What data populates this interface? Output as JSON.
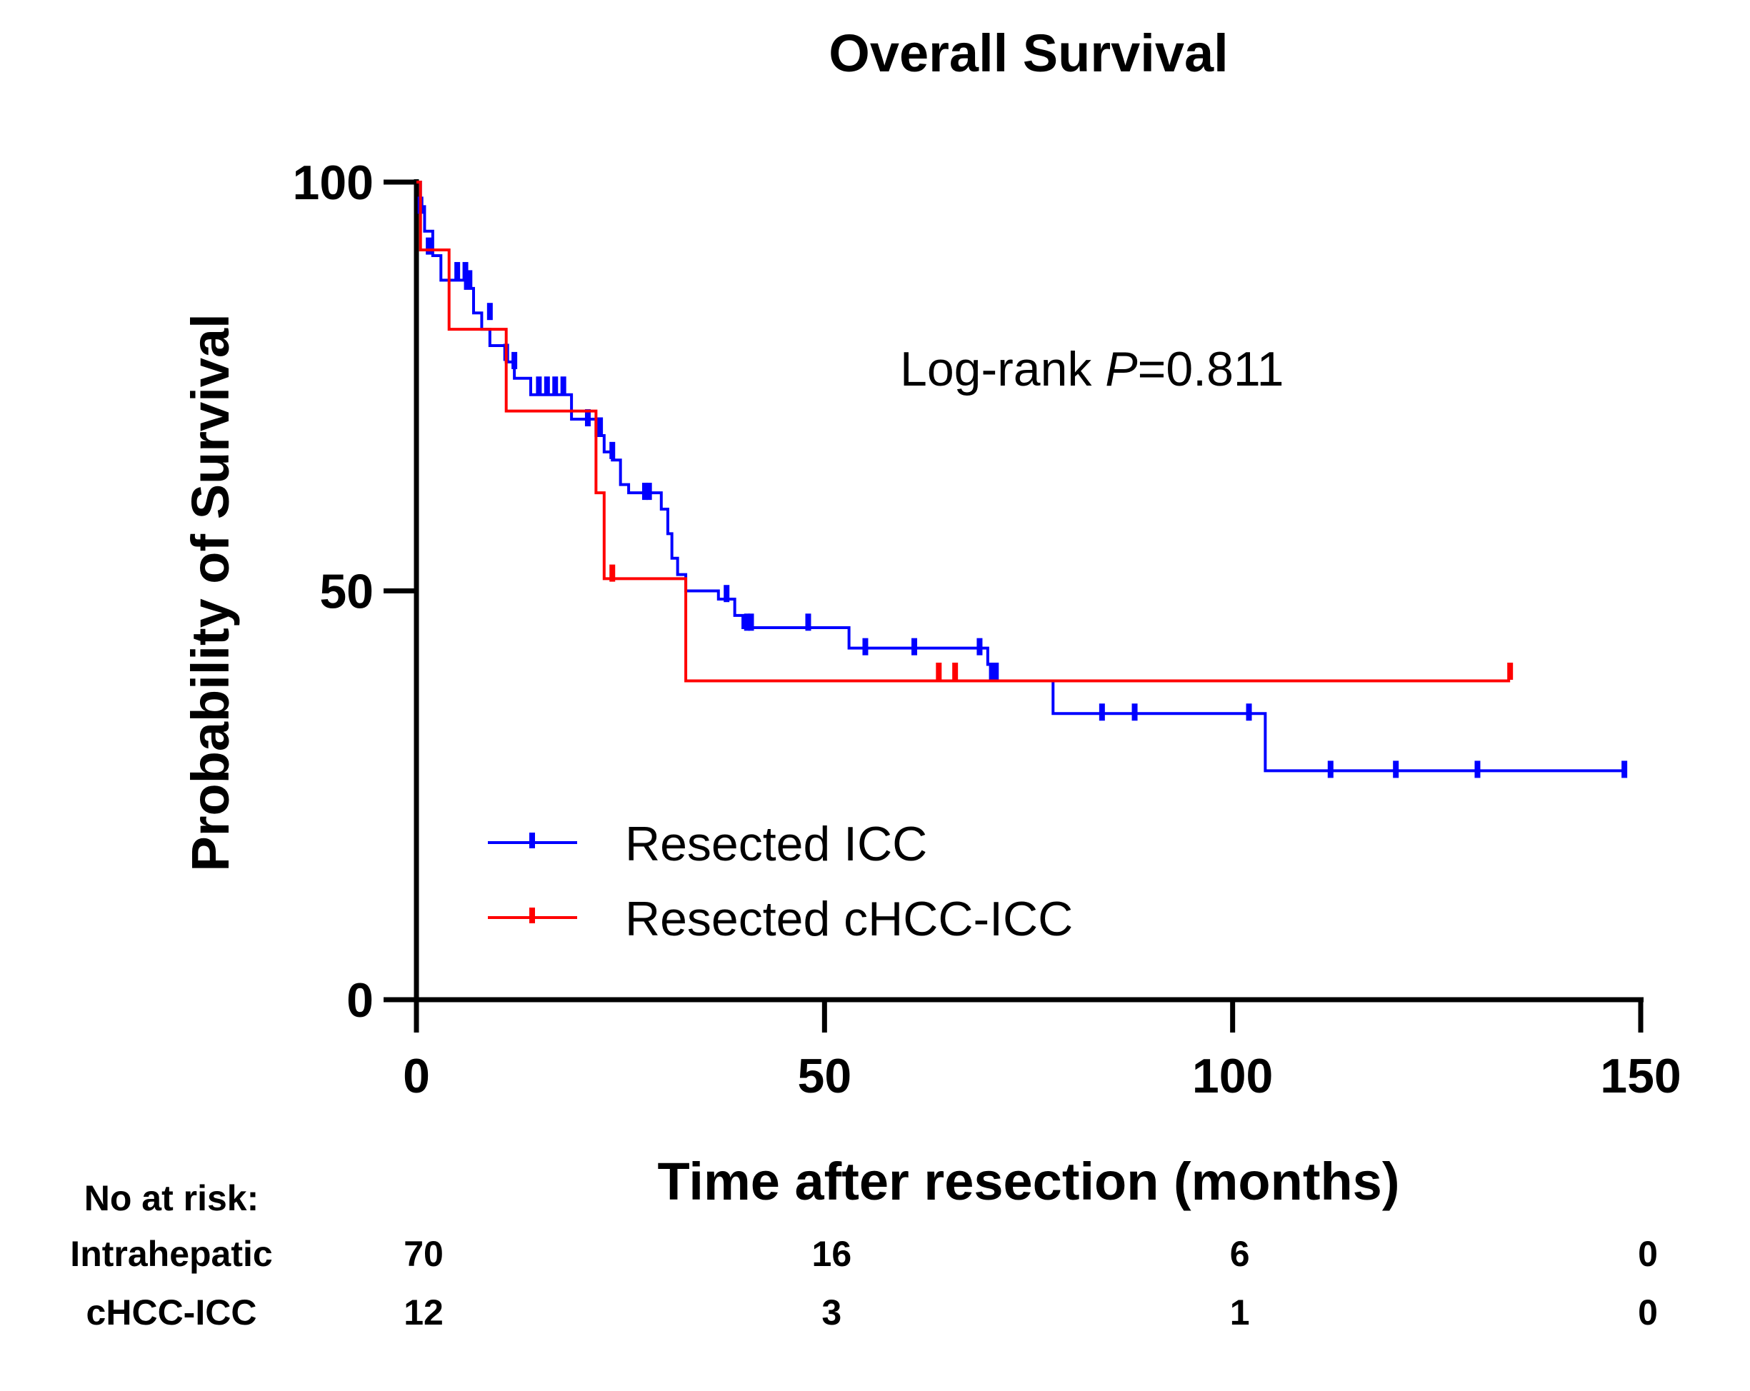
{
  "chart_data": {
    "type": "line",
    "title": "Overall Survival",
    "xlabel": "Time after resection (months)",
    "ylabel": "Probability of Survival",
    "xlim": [
      0,
      150
    ],
    "ylim": [
      0,
      100
    ],
    "xticks": [
      0,
      50,
      100,
      150
    ],
    "yticks": [
      0,
      50,
      100
    ],
    "annotation": {
      "prefix": "Log-rank ",
      "italic": "P",
      "suffix": "=0.811"
    },
    "legend_position": "bottom-left",
    "series": [
      {
        "name": "Resected ICC",
        "color": "#0000ff",
        "steps": [
          [
            0,
            100
          ],
          [
            0.5,
            97
          ],
          [
            1,
            94
          ],
          [
            2,
            91
          ],
          [
            3,
            88
          ],
          [
            6,
            87
          ],
          [
            7,
            84
          ],
          [
            8,
            82
          ],
          [
            9,
            80
          ],
          [
            11,
            78
          ],
          [
            12,
            76
          ],
          [
            14,
            74
          ],
          [
            19,
            71
          ],
          [
            22,
            69
          ],
          [
            23,
            67
          ],
          [
            24,
            66
          ],
          [
            25,
            63
          ],
          [
            26,
            62
          ],
          [
            30,
            60
          ],
          [
            30.8,
            57
          ],
          [
            31.3,
            54
          ],
          [
            32,
            52
          ],
          [
            33,
            50
          ],
          [
            37,
            49
          ],
          [
            39,
            47
          ],
          [
            40,
            45.5
          ],
          [
            53,
            43
          ],
          [
            70,
            41
          ],
          [
            71,
            39
          ],
          [
            78,
            35
          ],
          [
            104,
            28
          ],
          [
            148,
            28
          ]
        ],
        "censors": [
          [
            0.5,
            97
          ],
          [
            1.5,
            92
          ],
          [
            5,
            89
          ],
          [
            6,
            89
          ],
          [
            6.5,
            88
          ],
          [
            9,
            84
          ],
          [
            11,
            79
          ],
          [
            12,
            78
          ],
          [
            15,
            75
          ],
          [
            16,
            75
          ],
          [
            17,
            75
          ],
          [
            18,
            75
          ],
          [
            21,
            71
          ],
          [
            22.5,
            70
          ],
          [
            24,
            67
          ],
          [
            28,
            62
          ],
          [
            28.5,
            62
          ],
          [
            38,
            49.5
          ],
          [
            40.5,
            46
          ],
          [
            41,
            46
          ],
          [
            48,
            46
          ],
          [
            55,
            43
          ],
          [
            61,
            43
          ],
          [
            69,
            43
          ],
          [
            70.5,
            40
          ],
          [
            71,
            40
          ],
          [
            84,
            35
          ],
          [
            88,
            35
          ],
          [
            102,
            35
          ],
          [
            112,
            28
          ],
          [
            120,
            28
          ],
          [
            130,
            28
          ],
          [
            148,
            28
          ]
        ]
      },
      {
        "name": "Resected cHCC-ICC",
        "color": "#ff0000",
        "steps": [
          [
            0,
            100
          ],
          [
            0.5,
            91.7
          ],
          [
            4,
            82
          ],
          [
            11,
            72
          ],
          [
            22,
            62
          ],
          [
            23,
            51.5
          ],
          [
            33,
            39
          ],
          [
            134,
            39
          ]
        ],
        "censors": [
          [
            24,
            52
          ],
          [
            64,
            40
          ],
          [
            66,
            40
          ],
          [
            134,
            40
          ]
        ]
      }
    ],
    "at_risk": {
      "header": "No at risk:",
      "times": [
        0,
        50,
        100,
        150
      ],
      "rows": [
        {
          "label": "Intrahepatic",
          "values": [
            "70",
            "16",
            "6",
            "0"
          ]
        },
        {
          "label": "cHCC-ICC",
          "values": [
            "12",
            "3",
            "1",
            "0"
          ]
        }
      ]
    }
  }
}
